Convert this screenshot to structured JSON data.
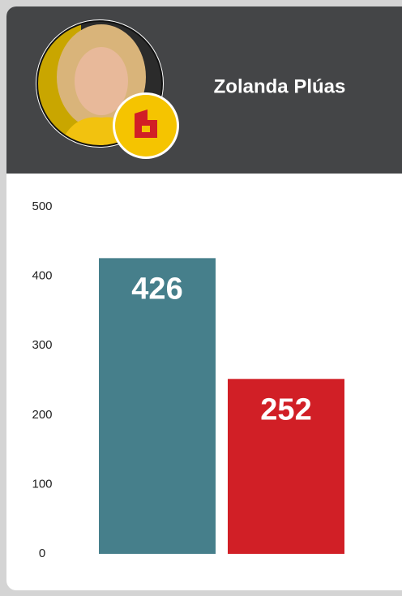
{
  "header": {
    "name": "Zolanda Plúas"
  },
  "chart_data": {
    "type": "bar",
    "values": [
      426,
      252
    ],
    "colors": [
      "#467f8b",
      "#d11f26"
    ],
    "ylim": [
      0,
      500
    ],
    "yticks": [
      0,
      100,
      200,
      300,
      400,
      500
    ],
    "grid": false,
    "show_value_labels": true
  }
}
